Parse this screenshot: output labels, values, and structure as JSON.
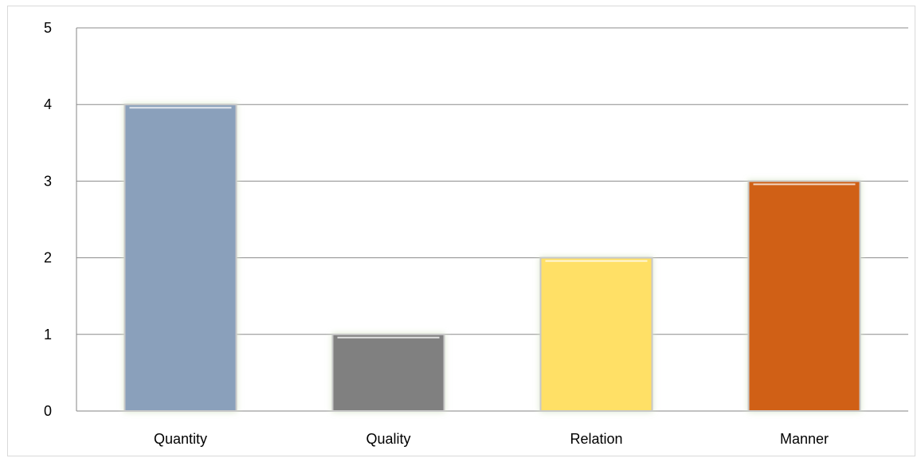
{
  "chart_data": {
    "type": "bar",
    "categories": [
      "Quantity",
      "Quality",
      "Relation",
      "Manner"
    ],
    "values": [
      4,
      1,
      2,
      3
    ],
    "colors": [
      "#8aa0bb",
      "#808080",
      "#ffe066",
      "#d06014"
    ],
    "ylim": [
      0,
      5
    ],
    "yticks": [
      0,
      1,
      2,
      3,
      4,
      5
    ],
    "title": "",
    "xlabel": "",
    "ylabel": "",
    "grid": true,
    "legend": "none"
  }
}
